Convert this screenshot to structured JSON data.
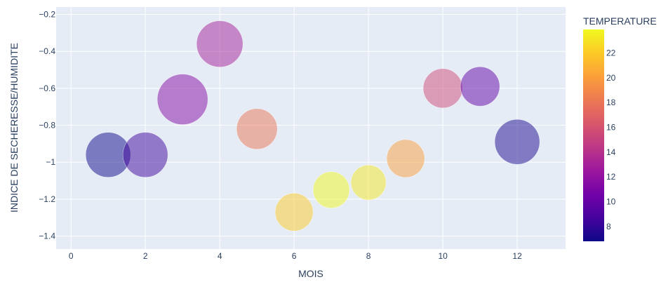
{
  "chart_data": {
    "type": "scatter",
    "subtype": "bubble",
    "title": "",
    "xlabel": "MOIS",
    "ylabel": "INDICE DE SECHERESSE/HUMIDITE",
    "xlim": [
      -0.4,
      13.3
    ],
    "ylim": [
      -1.47,
      -0.16
    ],
    "x_ticks": [
      0,
      2,
      4,
      6,
      8,
      10,
      12
    ],
    "x_tick_labels": [
      "0",
      "2",
      "4",
      "6",
      "8",
      "10",
      "12"
    ],
    "y_ticks": [
      -1.4,
      -1.2,
      -1.0,
      -0.8,
      -0.6,
      -0.4,
      -0.2
    ],
    "y_tick_labels": [
      "−1.4",
      "−1.2",
      "−1",
      "−0.8",
      "−0.6",
      "−0.4",
      "−0.2"
    ],
    "grid": true,
    "plot_background": "#e5ecf6",
    "marker_opacity": 0.5,
    "colorbar": {
      "title": "TEMPERATURE",
      "range": [
        6.8,
        23.9
      ],
      "ticks": [
        8,
        10,
        12,
        14,
        16,
        18,
        20,
        22
      ],
      "tick_labels": [
        "8",
        "10",
        "12",
        "14",
        "16",
        "18",
        "20",
        "22"
      ],
      "colorscale": [
        "#0d0887",
        "#46039f",
        "#7201a8",
        "#9c179e",
        "#bd3786",
        "#d8576b",
        "#ed7953",
        "#fb9f3a",
        "#fdca26",
        "#f0f921"
      ]
    },
    "points": [
      {
        "x": 1,
        "y": -0.96,
        "temperature": 6.8
      },
      {
        "x": 2,
        "y": -0.96,
        "temperature": 8.5
      },
      {
        "x": 3,
        "y": -0.66,
        "temperature": 11.5
      },
      {
        "x": 4,
        "y": -0.36,
        "temperature": 13.0
      },
      {
        "x": 5,
        "y": -0.82,
        "temperature": 18.0
      },
      {
        "x": 6,
        "y": -1.27,
        "temperature": 22.0
      },
      {
        "x": 7,
        "y": -1.15,
        "temperature": 23.8
      },
      {
        "x": 8,
        "y": -1.11,
        "temperature": 23.2
      },
      {
        "x": 9,
        "y": -0.98,
        "temperature": 20.0
      },
      {
        "x": 10,
        "y": -0.6,
        "temperature": 15.5
      },
      {
        "x": 11,
        "y": -0.59,
        "temperature": 10.0
      },
      {
        "x": 12,
        "y": -0.89,
        "temperature": 7.2
      }
    ]
  }
}
